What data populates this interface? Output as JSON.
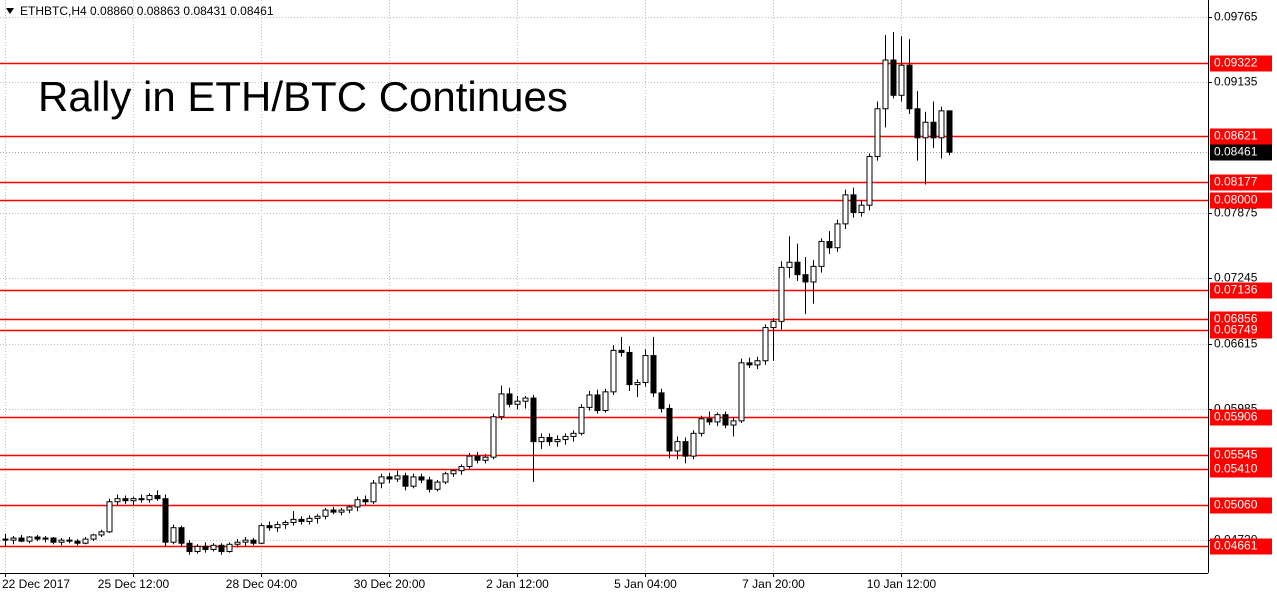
{
  "chart_data": {
    "type": "candlestick",
    "header": "ETHBTC,H4  0.08860 0.08863 0.08431 0.08461",
    "title": "Rally in ETH/BTC Continues",
    "categories": [
      "22 Dec 2017",
      null,
      null,
      null,
      null,
      null,
      null,
      null,
      null,
      null,
      null,
      null,
      null,
      null,
      null,
      null,
      "25 Dec 12:00",
      null,
      null,
      null,
      null,
      null,
      null,
      null,
      null,
      null,
      null,
      null,
      null,
      null,
      null,
      null,
      "28 Dec 04:00",
      null,
      null,
      null,
      null,
      null,
      null,
      null,
      null,
      null,
      null,
      null,
      null,
      null,
      null,
      null,
      "30 Dec 20:00",
      null,
      null,
      null,
      null,
      null,
      null,
      null,
      null,
      null,
      null,
      null,
      null,
      null,
      null,
      null,
      "2 Jan 12:00",
      null,
      null,
      null,
      null,
      null,
      null,
      null,
      null,
      null,
      null,
      null,
      null,
      null,
      null,
      null,
      "5 Jan 04:00",
      null,
      null,
      null,
      null,
      null,
      null,
      null,
      null,
      null,
      null,
      null,
      null,
      null,
      null,
      null,
      "7 Jan 20:00",
      null,
      null,
      null,
      null,
      null,
      null,
      null,
      null,
      null,
      null,
      null,
      null,
      null,
      null,
      null,
      "10 Jan 12:00",
      null,
      null,
      null,
      null,
      null,
      null
    ],
    "open": [
      0.0473,
      0.0472,
      0.0474,
      0.0471,
      0.0475,
      0.0473,
      0.0474,
      0.047,
      0.0472,
      0.0471,
      0.0469,
      0.0473,
      0.0477,
      0.048,
      0.0509,
      0.0512,
      0.051,
      0.0512,
      0.0511,
      0.0515,
      0.0512,
      0.047,
      0.0484,
      0.0469,
      0.0461,
      0.0466,
      0.0463,
      0.0467,
      0.0461,
      0.0468,
      0.047,
      0.0472,
      0.0469,
      0.0486,
      0.0484,
      0.0487,
      0.0489,
      0.0492,
      0.049,
      0.0493,
      0.0495,
      0.0501,
      0.0499,
      0.0501,
      0.0504,
      0.0511,
      0.0509,
      0.0527,
      0.0533,
      0.0531,
      0.0534,
      0.0524,
      0.0533,
      0.053,
      0.0521,
      0.0528,
      0.0536,
      0.0539,
      0.0543,
      0.0553,
      0.0549,
      0.0552,
      0.0591,
      0.0613,
      0.0603,
      0.0606,
      0.0609,
      0.0567,
      0.0571,
      0.0567,
      0.0569,
      0.0572,
      0.0575,
      0.06,
      0.0612,
      0.0597,
      0.0615,
      0.0655,
      0.0653,
      0.0622,
      0.0624,
      0.065,
      0.0614,
      0.0599,
      0.0558,
      0.0567,
      0.0553,
      0.0575,
      0.0589,
      0.0586,
      0.0593,
      0.0583,
      0.0587,
      0.0643,
      0.0641,
      0.0645,
      0.0677,
      0.0683,
      0.0735,
      0.074,
      0.0728,
      0.0721,
      0.0736,
      0.076,
      0.0754,
      0.0777,
      0.0805,
      0.0788,
      0.0795,
      0.0842,
      0.0888,
      0.0935,
      0.0901,
      0.093,
      0.0888,
      0.086,
      0.0875,
      0.086,
      0.0886
    ],
    "high": [
      0.0478,
      0.0476,
      0.0477,
      0.0476,
      0.0477,
      0.0476,
      0.0475,
      0.0474,
      0.0475,
      0.0473,
      0.0475,
      0.0478,
      0.0482,
      0.0512,
      0.0516,
      0.0515,
      0.0514,
      0.0516,
      0.0517,
      0.052,
      0.0516,
      0.0487,
      0.0486,
      0.0472,
      0.0468,
      0.047,
      0.0469,
      0.0469,
      0.047,
      0.0473,
      0.0475,
      0.0474,
      0.0488,
      0.049,
      0.049,
      0.0491,
      0.05,
      0.0495,
      0.0496,
      0.0497,
      0.0503,
      0.0504,
      0.0503,
      0.0506,
      0.0514,
      0.0515,
      0.053,
      0.0536,
      0.0537,
      0.0539,
      0.0537,
      0.0536,
      0.0536,
      0.0533,
      0.053,
      0.0538,
      0.054,
      0.0545,
      0.0556,
      0.0557,
      0.0555,
      0.0594,
      0.0621,
      0.0619,
      0.0611,
      0.0611,
      0.0612,
      0.0575,
      0.0575,
      0.0573,
      0.0575,
      0.0578,
      0.0603,
      0.0616,
      0.0617,
      0.0618,
      0.066,
      0.0668,
      0.0659,
      0.0627,
      0.0656,
      0.0668,
      0.0618,
      0.0603,
      0.0572,
      0.0571,
      0.0578,
      0.0592,
      0.0596,
      0.0595,
      0.0596,
      0.059,
      0.0647,
      0.0648,
      0.0649,
      0.068,
      0.0686,
      0.0741,
      0.0765,
      0.0758,
      0.0745,
      0.0742,
      0.0763,
      0.077,
      0.0781,
      0.081,
      0.0812,
      0.08,
      0.0845,
      0.0895,
      0.0959,
      0.0962,
      0.0958,
      0.0955,
      0.0905,
      0.0885,
      0.0895,
      0.089,
      0.08863
    ],
    "low": [
      0.0466,
      0.0468,
      0.047,
      0.0469,
      0.0471,
      0.047,
      0.0468,
      0.0467,
      0.0469,
      0.0467,
      0.0468,
      0.0471,
      0.0475,
      0.0479,
      0.0505,
      0.0507,
      0.0506,
      0.0508,
      0.0508,
      0.051,
      0.0466,
      0.0468,
      0.0466,
      0.0458,
      0.0459,
      0.046,
      0.0461,
      0.0458,
      0.046,
      0.0465,
      0.0466,
      0.0467,
      0.0468,
      0.0481,
      0.048,
      0.0483,
      0.0486,
      0.0487,
      0.0487,
      0.0488,
      0.0492,
      0.0497,
      0.0496,
      0.0498,
      0.05,
      0.0506,
      0.0507,
      0.0522,
      0.0527,
      0.0528,
      0.052,
      0.0522,
      0.0527,
      0.0518,
      0.0519,
      0.0526,
      0.0533,
      0.0535,
      0.0541,
      0.0546,
      0.0546,
      0.055,
      0.0588,
      0.06,
      0.0598,
      0.0599,
      0.0528,
      0.056,
      0.0563,
      0.0562,
      0.0564,
      0.0567,
      0.0573,
      0.0597,
      0.0594,
      0.0595,
      0.0612,
      0.0649,
      0.0616,
      0.061,
      0.062,
      0.061,
      0.0595,
      0.0551,
      0.055,
      0.0546,
      0.055,
      0.0572,
      0.0583,
      0.0582,
      0.058,
      0.0572,
      0.0585,
      0.0638,
      0.0637,
      0.0641,
      0.0645,
      0.0675,
      0.0725,
      0.0722,
      0.069,
      0.07,
      0.073,
      0.0748,
      0.075,
      0.0772,
      0.0783,
      0.0784,
      0.079,
      0.0838,
      0.087,
      0.0898,
      0.0895,
      0.0883,
      0.0838,
      0.0815,
      0.085,
      0.084,
      0.08431
    ],
    "close": [
      0.0472,
      0.0474,
      0.0471,
      0.0475,
      0.0473,
      0.0474,
      0.047,
      0.0472,
      0.0471,
      0.0469,
      0.0473,
      0.0477,
      0.048,
      0.0509,
      0.0512,
      0.051,
      0.0512,
      0.0511,
      0.0515,
      0.0512,
      0.047,
      0.0484,
      0.0469,
      0.0461,
      0.0466,
      0.0463,
      0.0467,
      0.0461,
      0.0468,
      0.047,
      0.0472,
      0.0469,
      0.0486,
      0.0484,
      0.0487,
      0.0489,
      0.0492,
      0.049,
      0.0493,
      0.0495,
      0.0501,
      0.0499,
      0.0501,
      0.0504,
      0.0511,
      0.0509,
      0.0527,
      0.0533,
      0.0531,
      0.0534,
      0.0524,
      0.0533,
      0.053,
      0.0521,
      0.0528,
      0.0536,
      0.0539,
      0.0543,
      0.0553,
      0.0549,
      0.0552,
      0.0591,
      0.0613,
      0.0603,
      0.0606,
      0.0609,
      0.0567,
      0.0571,
      0.0567,
      0.0569,
      0.0572,
      0.0575,
      0.06,
      0.0612,
      0.0597,
      0.0615,
      0.0655,
      0.0653,
      0.0622,
      0.0624,
      0.065,
      0.0614,
      0.0599,
      0.0558,
      0.0567,
      0.0553,
      0.0575,
      0.0589,
      0.0586,
      0.0593,
      0.0583,
      0.0587,
      0.0643,
      0.0641,
      0.0645,
      0.0677,
      0.0683,
      0.0735,
      0.074,
      0.0728,
      0.0721,
      0.0736,
      0.076,
      0.0754,
      0.0777,
      0.0805,
      0.0788,
      0.0795,
      0.0842,
      0.0888,
      0.0935,
      0.0901,
      0.093,
      0.0888,
      0.086,
      0.0875,
      0.086,
      0.0886,
      0.08461
    ],
    "up_color": "#ffffff",
    "down_color": "#000000",
    "ylim": [
      0.04403,
      0.09929
    ],
    "yticks": [
      0.09765,
      0.09135,
      0.07875,
      0.07245,
      0.06615,
      0.05985,
      {
        "value": 0.0472,
        "label": "0.04720"
      }
    ],
    "grid": true,
    "levels": [
      0.09322,
      0.08621,
      0.08177,
      {
        "value": 0.08,
        "label": "0.08000"
      },
      0.07136,
      0.06856,
      0.06749,
      0.05906,
      0.05545,
      {
        "value": 0.0541,
        "label": "0.05410"
      },
      {
        "value": 0.0506,
        "label": "0.05060"
      },
      0.04661
    ],
    "level_color": "#ff0000"
  }
}
